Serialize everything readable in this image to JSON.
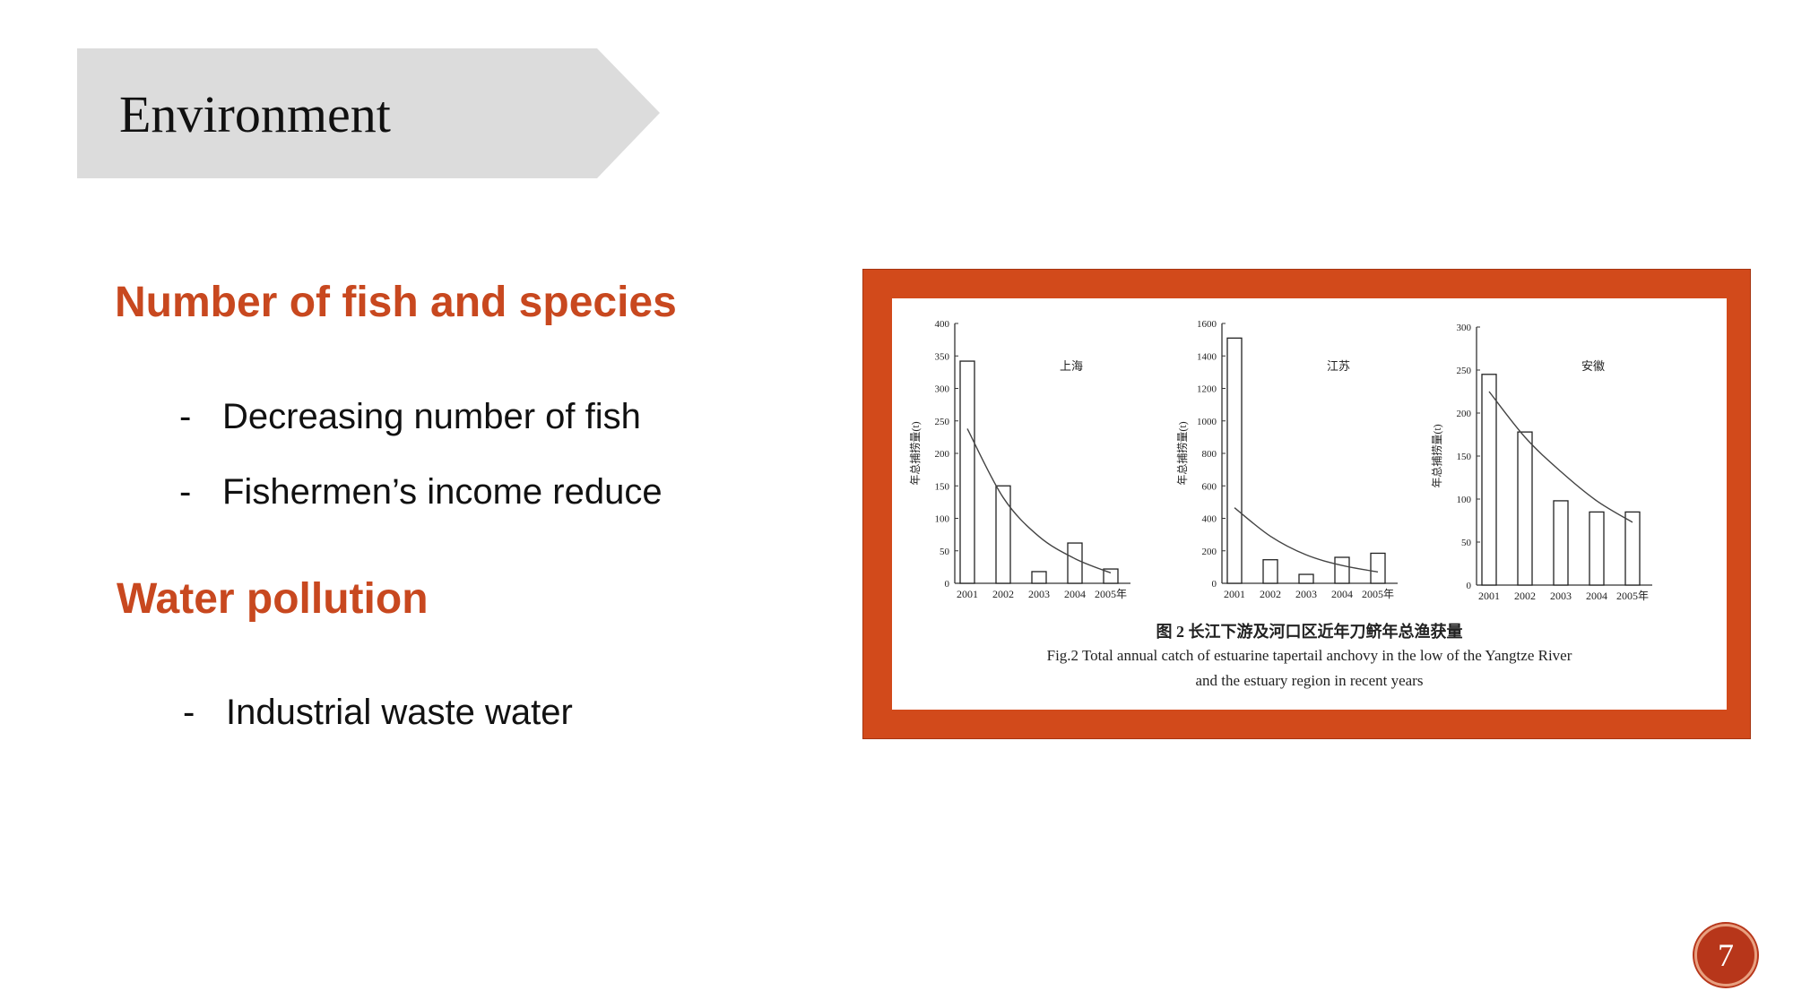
{
  "slide": {
    "title": "Environment",
    "page_number": "7",
    "accent_color": "#d24a1b",
    "banner_color": "#dcdcdc"
  },
  "content": {
    "section1": {
      "heading": "Number of fish and species",
      "bullets": [
        "Decreasing number of fish",
        "Fishermen’s income reduce"
      ]
    },
    "section2": {
      "heading": "Water pollution",
      "bullets": [
        "Industrial waste water"
      ]
    },
    "dash": "-"
  },
  "figure": {
    "caption_cn": "图 2  长江下游及河口区近年刀鲚年总渔获量",
    "caption_en_1": "Fig.2 Total annual catch of estuarine tapertail anchovy in the low of the Yangtze River",
    "caption_en_2": "and the estuary region in recent years"
  },
  "chart_data": [
    {
      "type": "bar",
      "title": "上海",
      "ylabel": "年总捕捞量(t)",
      "categories": [
        "2001",
        "2002",
        "2003",
        "2004",
        "2005年"
      ],
      "values": [
        342,
        150,
        18,
        62,
        22
      ],
      "trend": [
        238,
        132,
        72,
        38,
        16
      ],
      "yticks": [
        0,
        50,
        100,
        150,
        200,
        250,
        300,
        350,
        400
      ],
      "ylim": [
        0,
        400
      ]
    },
    {
      "type": "bar",
      "title": "江苏",
      "ylabel": "年总捕捞量(t)",
      "categories": [
        "2001",
        "2002",
        "2003",
        "2004",
        "2005年"
      ],
      "values": [
        1510,
        145,
        55,
        160,
        185
      ],
      "trend": [
        465,
        290,
        175,
        110,
        70
      ],
      "yticks": [
        0,
        200,
        400,
        600,
        800,
        1000,
        1200,
        1400,
        1600
      ],
      "ylim": [
        0,
        1600
      ]
    },
    {
      "type": "bar",
      "title": "安徽",
      "ylabel": "年总捕捞量(t)",
      "categories": [
        "2001",
        "2002",
        "2003",
        "2004",
        "2005年"
      ],
      "values": [
        245,
        178,
        98,
        85,
        85
      ],
      "trend": [
        225,
        172,
        132,
        98,
        73
      ],
      "yticks": [
        0,
        50,
        100,
        150,
        200,
        250,
        300
      ],
      "ylim": [
        0,
        300
      ]
    }
  ]
}
